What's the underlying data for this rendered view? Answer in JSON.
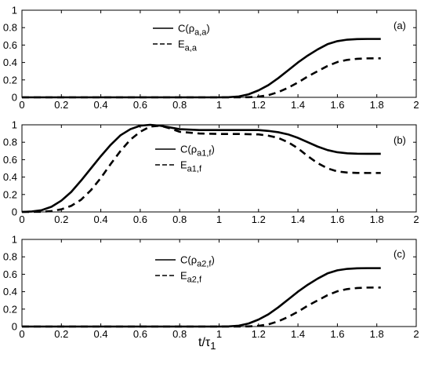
{
  "chart_data": [
    {
      "type": "line",
      "panel_label": "(a)",
      "xlim": [
        0,
        2
      ],
      "ylim": [
        0,
        1
      ],
      "x_ticks": [
        "0",
        "0.2",
        "0.4",
        "0.6",
        "0.8",
        "1",
        "1.2",
        "1.4",
        "1.6",
        "1.8",
        "2"
      ],
      "y_ticks": [
        "0",
        "0.2",
        "0.4",
        "0.6",
        "0.8",
        "1"
      ],
      "legend_position": "top-center",
      "series": [
        {
          "name": "C(ρa,a)",
          "name_main": "C(ρ",
          "name_sub": "a,a",
          "name_close": ")",
          "style": "solid",
          "x": [
            0,
            0.2,
            0.4,
            0.6,
            0.8,
            1.0,
            1.05,
            1.1,
            1.15,
            1.2,
            1.25,
            1.3,
            1.35,
            1.4,
            1.45,
            1.5,
            1.55,
            1.6,
            1.65,
            1.7,
            1.75,
            1.8,
            1.82
          ],
          "values": [
            0,
            0,
            0,
            0,
            0,
            0,
            0.002,
            0.01,
            0.035,
            0.08,
            0.14,
            0.22,
            0.31,
            0.4,
            0.48,
            0.55,
            0.61,
            0.645,
            0.662,
            0.668,
            0.67,
            0.67,
            0.67
          ]
        },
        {
          "name": "Ea,a",
          "name_main": "E",
          "name_sub": "a,a",
          "name_close": "",
          "style": "dashed",
          "x": [
            0,
            0.2,
            0.4,
            0.6,
            0.8,
            1.0,
            1.1,
            1.15,
            1.2,
            1.25,
            1.3,
            1.35,
            1.4,
            1.45,
            1.5,
            1.55,
            1.6,
            1.65,
            1.7,
            1.75,
            1.8,
            1.82
          ],
          "values": [
            0,
            0,
            0,
            0,
            0,
            0,
            0,
            0.002,
            0.008,
            0.025,
            0.06,
            0.11,
            0.17,
            0.24,
            0.3,
            0.36,
            0.405,
            0.43,
            0.442,
            0.447,
            0.448,
            0.448
          ]
        }
      ]
    },
    {
      "type": "line",
      "panel_label": "(b)",
      "xlim": [
        0,
        2
      ],
      "ylim": [
        0,
        1
      ],
      "x_ticks": [
        "0",
        "0.2",
        "0.4",
        "0.6",
        "0.8",
        "1",
        "1.2",
        "1.4",
        "1.6",
        "1.8",
        "2"
      ],
      "y_ticks": [
        "0",
        "0.2",
        "0.4",
        "0.6",
        "0.8",
        "1"
      ],
      "legend_position": "right-center",
      "series": [
        {
          "name": "C(ρa1,f)",
          "name_main": "C(ρ",
          "name_sub": "a1,f",
          "name_close": ")",
          "style": "solid",
          "x": [
            0,
            0.05,
            0.1,
            0.15,
            0.2,
            0.25,
            0.3,
            0.35,
            0.4,
            0.45,
            0.5,
            0.55,
            0.6,
            0.65,
            0.7,
            0.75,
            0.8,
            0.9,
            1.0,
            1.1,
            1.2,
            1.25,
            1.3,
            1.35,
            1.4,
            1.45,
            1.5,
            1.55,
            1.6,
            1.65,
            1.7,
            1.75,
            1.8,
            1.82
          ],
          "values": [
            0,
            0.005,
            0.02,
            0.06,
            0.13,
            0.23,
            0.36,
            0.5,
            0.64,
            0.77,
            0.88,
            0.95,
            0.99,
            1.0,
            0.99,
            0.97,
            0.95,
            0.94,
            0.94,
            0.94,
            0.94,
            0.93,
            0.915,
            0.89,
            0.85,
            0.8,
            0.75,
            0.71,
            0.685,
            0.673,
            0.668,
            0.667,
            0.667,
            0.667
          ]
        },
        {
          "name": "Ea1,f",
          "name_main": "E",
          "name_sub": "a1,f",
          "name_close": "",
          "style": "dashed",
          "x": [
            0,
            0.1,
            0.15,
            0.2,
            0.25,
            0.3,
            0.35,
            0.4,
            0.45,
            0.5,
            0.55,
            0.6,
            0.65,
            0.7,
            0.75,
            0.8,
            0.9,
            1.0,
            1.1,
            1.2,
            1.25,
            1.3,
            1.35,
            1.4,
            1.45,
            1.5,
            1.55,
            1.6,
            1.65,
            1.7,
            1.75,
            1.8,
            1.82
          ],
          "values": [
            0,
            0.002,
            0.01,
            0.03,
            0.07,
            0.14,
            0.25,
            0.39,
            0.55,
            0.7,
            0.83,
            0.92,
            0.98,
            0.99,
            0.96,
            0.92,
            0.9,
            0.895,
            0.895,
            0.89,
            0.875,
            0.85,
            0.8,
            0.73,
            0.64,
            0.56,
            0.5,
            0.465,
            0.452,
            0.448,
            0.447,
            0.447,
            0.447
          ]
        }
      ]
    },
    {
      "type": "line",
      "panel_label": "(c)",
      "xlim": [
        0,
        2
      ],
      "ylim": [
        0,
        1
      ],
      "x_ticks": [
        "0",
        "0.2",
        "0.4",
        "0.6",
        "0.8",
        "1",
        "1.2",
        "1.4",
        "1.6",
        "1.8",
        "2"
      ],
      "y_ticks": [
        "0",
        "0.2",
        "0.4",
        "0.6",
        "0.8",
        "1"
      ],
      "xlabel_main": "t/τ",
      "xlabel_sub": "1",
      "legend_position": "top-center",
      "series": [
        {
          "name": "C(ρa2,f)",
          "name_main": "C(ρ",
          "name_sub": "a2,f",
          "name_close": ")",
          "style": "solid",
          "x": [
            0,
            0.2,
            0.4,
            0.6,
            0.8,
            1.0,
            1.05,
            1.1,
            1.15,
            1.2,
            1.25,
            1.3,
            1.35,
            1.4,
            1.45,
            1.5,
            1.55,
            1.6,
            1.65,
            1.7,
            1.75,
            1.8,
            1.82
          ],
          "values": [
            0,
            0,
            0,
            0,
            0,
            0,
            0.002,
            0.01,
            0.035,
            0.08,
            0.14,
            0.22,
            0.31,
            0.4,
            0.48,
            0.55,
            0.61,
            0.645,
            0.662,
            0.668,
            0.67,
            0.67,
            0.67
          ]
        },
        {
          "name": "Ea2,f",
          "name_main": "E",
          "name_sub": "a2,f",
          "name_close": "",
          "style": "dashed",
          "x": [
            0,
            0.2,
            0.4,
            0.6,
            0.8,
            1.0,
            1.1,
            1.15,
            1.2,
            1.25,
            1.3,
            1.35,
            1.4,
            1.45,
            1.5,
            1.55,
            1.6,
            1.65,
            1.7,
            1.75,
            1.8,
            1.82
          ],
          "values": [
            0,
            0,
            0,
            0,
            0,
            0,
            0,
            0.002,
            0.008,
            0.025,
            0.06,
            0.11,
            0.17,
            0.24,
            0.3,
            0.36,
            0.405,
            0.43,
            0.442,
            0.447,
            0.448,
            0.448
          ]
        }
      ]
    }
  ],
  "colors": {
    "line": "#000000",
    "background": "#ffffff"
  }
}
